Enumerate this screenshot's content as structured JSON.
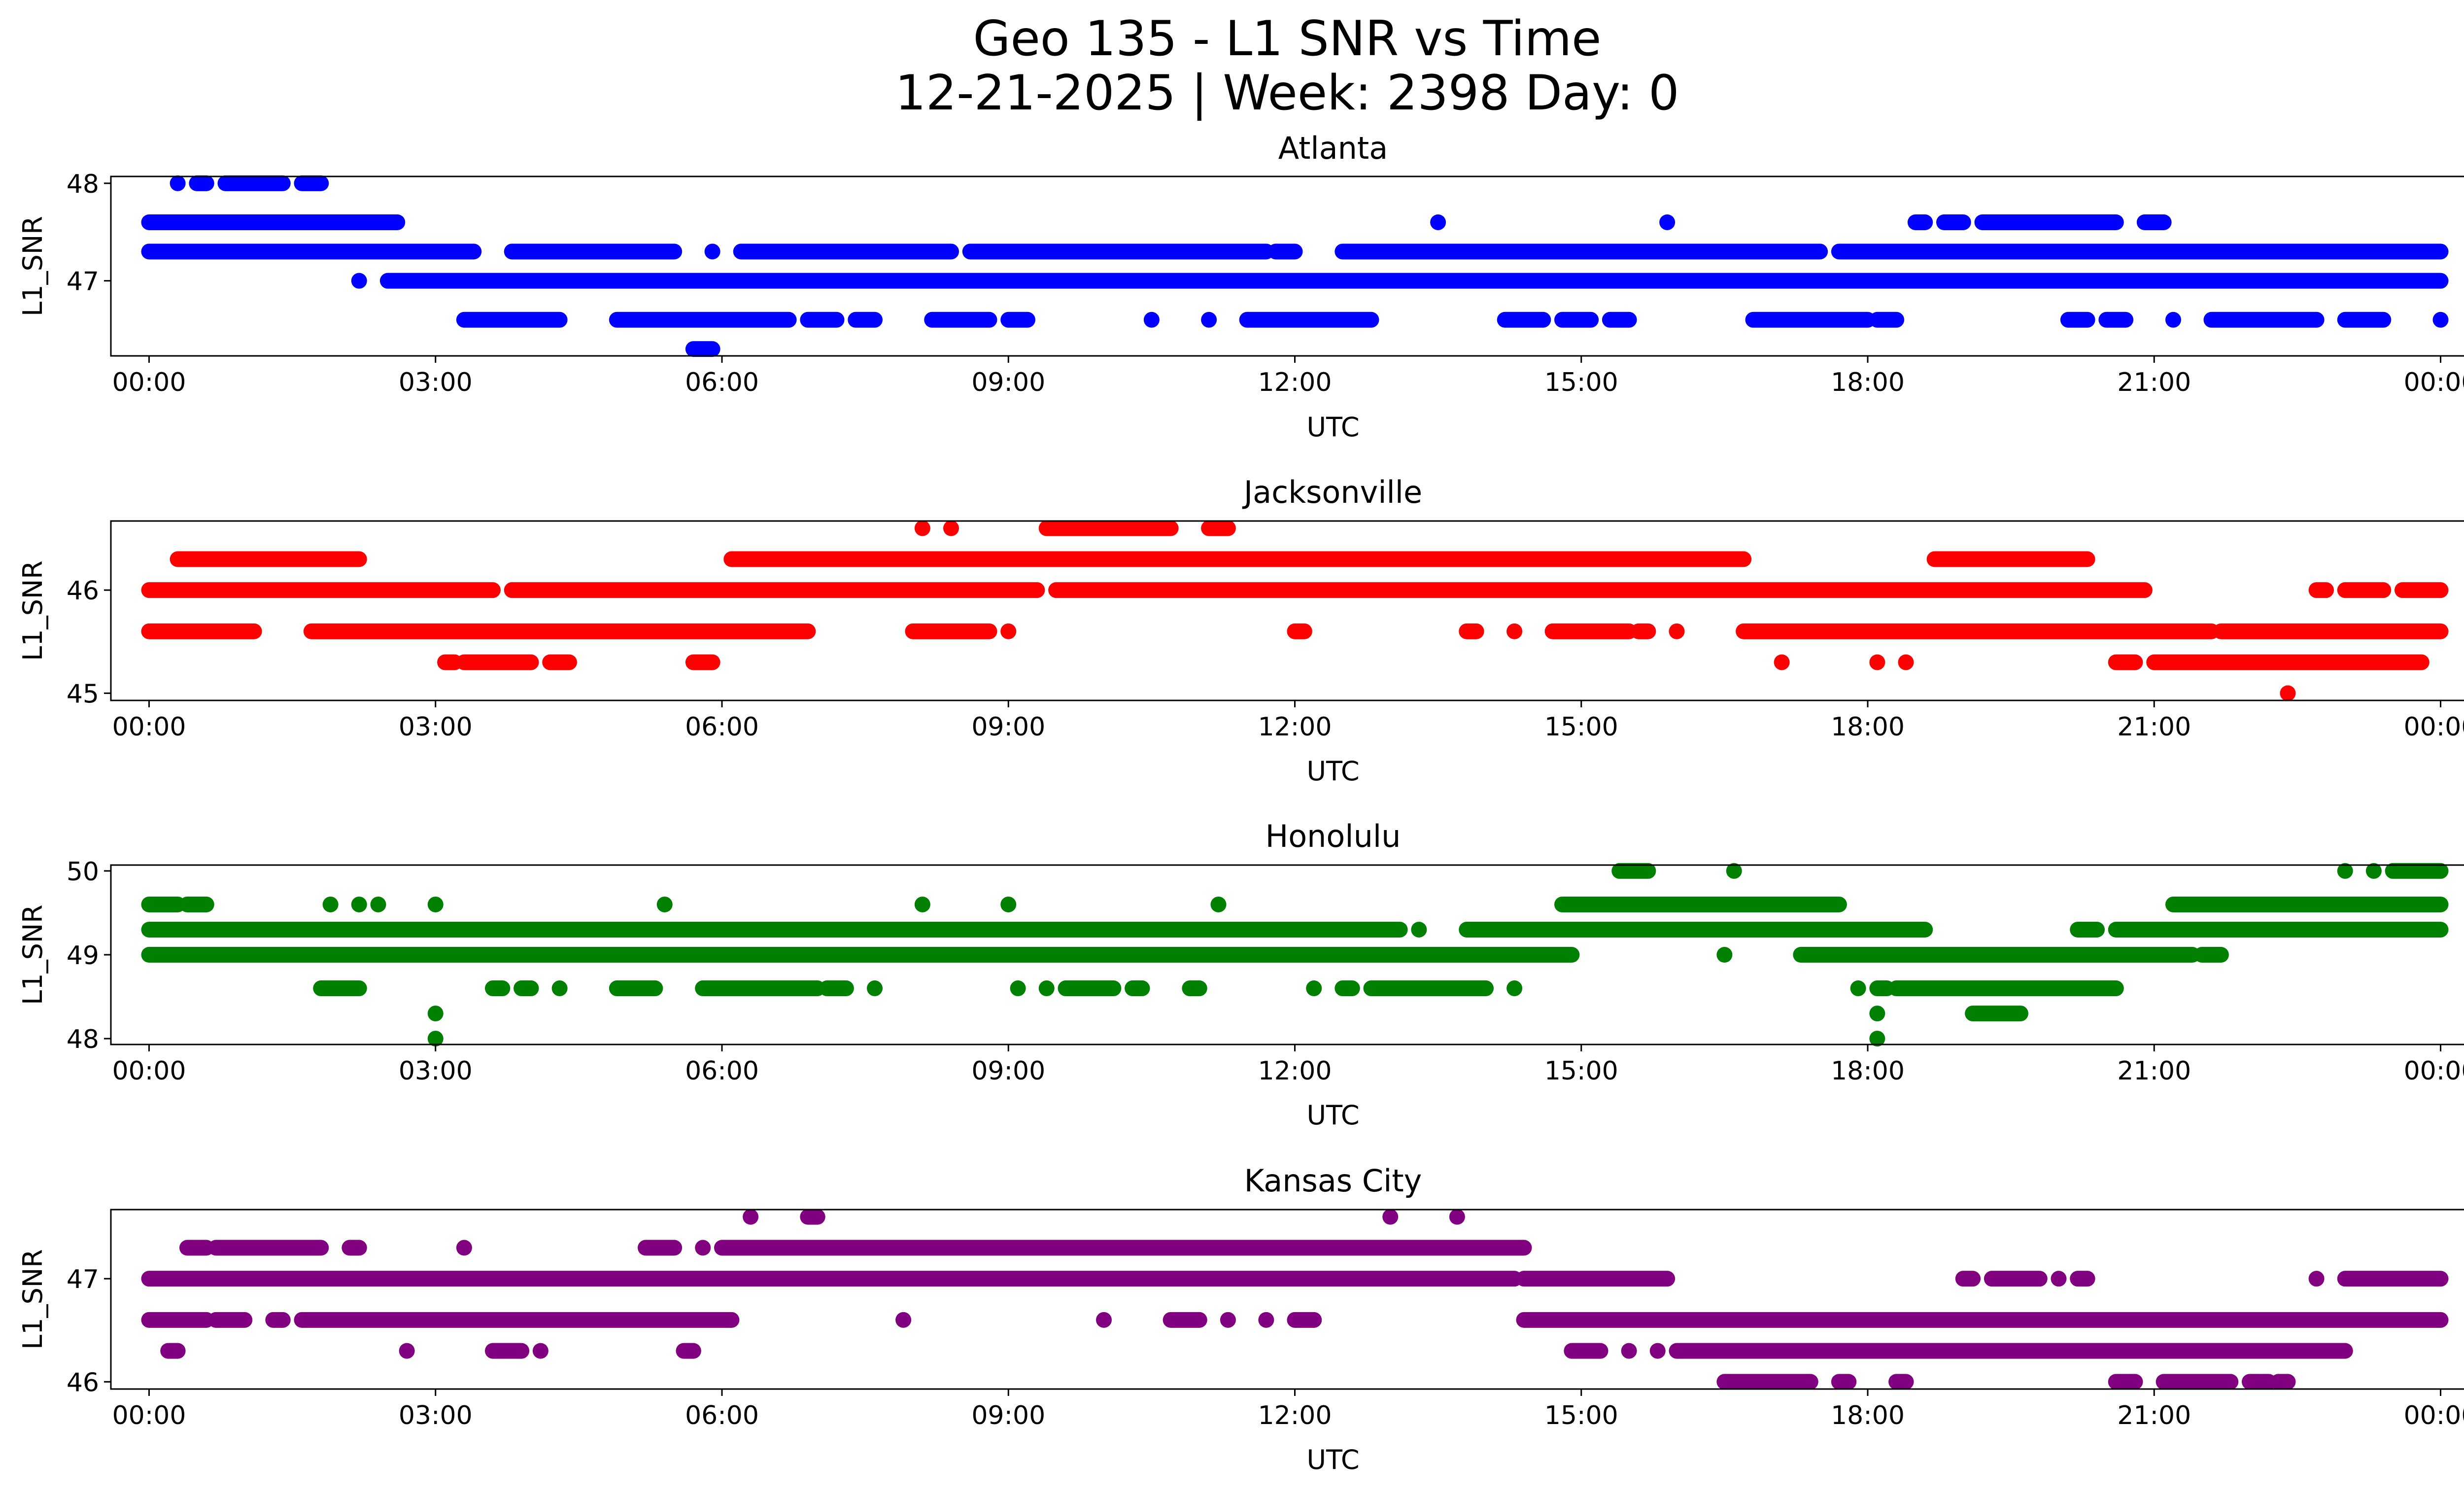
{
  "figure": {
    "title_line1": "Geo 135 - L1 SNR vs Time",
    "title_line2": "12-21-2025 | Week: 2398 Day: 0"
  },
  "chart_data": [
    {
      "type": "scatter",
      "title": "Atlanta",
      "xlabel": "UTC",
      "ylabel": "L1_SNR",
      "color": "#0000ff",
      "xlim": [
        -0.4,
        25.2
      ],
      "ylim": [
        46.23,
        48.07
      ],
      "xticks": [
        "00:00",
        "03:00",
        "06:00",
        "09:00",
        "12:00",
        "15:00",
        "18:00",
        "21:00",
        "00:00"
      ],
      "yticks": [
        47,
        48
      ],
      "bands": [
        {
          "y": 47.6,
          "segments": [
            [
              0,
              2.6
            ],
            [
              13.5,
              13.5
            ],
            [
              15.9,
              15.9
            ],
            [
              18.5,
              18.6
            ],
            [
              18.8,
              19.0
            ],
            [
              19.2,
              20.6
            ],
            [
              20.9,
              21.1
            ]
          ]
        },
        {
          "y": 47.3,
          "segments": [
            [
              0,
              3.4
            ],
            [
              3.8,
              5.5
            ],
            [
              5.9,
              5.9
            ],
            [
              6.2,
              8.4
            ],
            [
              8.6,
              11.7
            ],
            [
              11.8,
              12.0
            ],
            [
              12.5,
              17.5
            ],
            [
              17.7,
              24.0
            ]
          ]
        },
        {
          "y": 47.0,
          "segments": [
            [
              2.2,
              2.2
            ],
            [
              2.5,
              24.0
            ]
          ]
        },
        {
          "y": 46.6,
          "segments": [
            [
              3.3,
              4.3
            ],
            [
              4.9,
              6.7
            ],
            [
              6.9,
              7.2
            ],
            [
              7.4,
              7.6
            ],
            [
              8.2,
              8.8
            ],
            [
              9.0,
              9.2
            ],
            [
              10.5,
              10.5
            ],
            [
              11.1,
              11.1
            ],
            [
              11.5,
              12.8
            ],
            [
              14.2,
              14.6
            ],
            [
              14.8,
              15.1
            ],
            [
              15.3,
              15.5
            ],
            [
              16.8,
              18.0
            ],
            [
              18.1,
              18.3
            ],
            [
              20.1,
              20.3
            ],
            [
              20.5,
              20.7
            ],
            [
              21.2,
              21.2
            ],
            [
              21.6,
              22.7
            ],
            [
              23.0,
              23.4
            ],
            [
              24.0,
              24.0
            ]
          ]
        },
        {
          "y": 46.3,
          "segments": [
            [
              5.7,
              5.9
            ]
          ]
        },
        {
          "y": 48.0,
          "segments": [
            [
              0.3,
              0.3
            ],
            [
              0.5,
              0.6
            ],
            [
              0.8,
              1.4
            ],
            [
              1.6,
              1.8
            ]
          ]
        }
      ]
    },
    {
      "type": "scatter",
      "title": "Jacksonville",
      "xlabel": "UTC",
      "ylabel": "L1_SNR",
      "color": "#ff0000",
      "xlim": [
        -0.4,
        25.2
      ],
      "ylim": [
        44.93,
        46.67
      ],
      "xticks": [
        "00:00",
        "03:00",
        "06:00",
        "09:00",
        "12:00",
        "15:00",
        "18:00",
        "21:00",
        "00:00"
      ],
      "yticks": [
        45,
        46
      ],
      "bands": [
        {
          "y": 46.6,
          "segments": [
            [
              8.1,
              8.1
            ],
            [
              8.4,
              8.4
            ],
            [
              9.4,
              10.7
            ],
            [
              11.1,
              11.3
            ]
          ]
        },
        {
          "y": 46.3,
          "segments": [
            [
              0.3,
              2.2
            ],
            [
              6.1,
              16.7
            ],
            [
              18.7,
              20.3
            ]
          ]
        },
        {
          "y": 46.0,
          "segments": [
            [
              0,
              3.6
            ],
            [
              3.8,
              9.3
            ],
            [
              9.5,
              20.9
            ],
            [
              22.7,
              22.8
            ],
            [
              23.0,
              23.4
            ],
            [
              23.6,
              24.0
            ]
          ]
        },
        {
          "y": 45.6,
          "segments": [
            [
              0,
              1.1
            ],
            [
              1.7,
              6.9
            ],
            [
              8.0,
              8.8
            ],
            [
              9.0,
              9.0
            ],
            [
              12.0,
              12.1
            ],
            [
              13.8,
              13.9
            ],
            [
              14.3,
              14.3
            ],
            [
              14.7,
              15.5
            ],
            [
              15.6,
              15.7
            ],
            [
              16.0,
              16.0
            ],
            [
              16.7,
              21.6
            ],
            [
              21.7,
              24.0
            ]
          ]
        },
        {
          "y": 45.3,
          "segments": [
            [
              3.1,
              3.2
            ],
            [
              3.3,
              4.0
            ],
            [
              4.2,
              4.4
            ],
            [
              5.7,
              5.9
            ],
            [
              17.1,
              17.1
            ],
            [
              18.1,
              18.1
            ],
            [
              18.4,
              18.4
            ],
            [
              20.6,
              20.8
            ],
            [
              21.0,
              23.8
            ]
          ]
        },
        {
          "y": 45.0,
          "segments": [
            [
              22.4,
              22.4
            ]
          ]
        }
      ]
    },
    {
      "type": "scatter",
      "title": "Honolulu",
      "xlabel": "UTC",
      "ylabel": "L1_SNR",
      "color": "#008000",
      "xlim": [
        -0.4,
        25.2
      ],
      "ylim": [
        47.93,
        50.07
      ],
      "xticks": [
        "00:00",
        "03:00",
        "06:00",
        "09:00",
        "12:00",
        "15:00",
        "18:00",
        "21:00",
        "00:00"
      ],
      "yticks": [
        48,
        49,
        50
      ],
      "bands": [
        {
          "y": 50.0,
          "segments": [
            [
              15.4,
              15.7
            ],
            [
              16.6,
              16.6
            ],
            [
              23.0,
              23.0
            ],
            [
              23.3,
              23.3
            ],
            [
              23.5,
              24.0
            ]
          ]
        },
        {
          "y": 49.6,
          "segments": [
            [
              0,
              0.3
            ],
            [
              0.4,
              0.6
            ],
            [
              1.9,
              1.9
            ],
            [
              2.2,
              2.2
            ],
            [
              2.4,
              2.4
            ],
            [
              3.0,
              3.0
            ],
            [
              5.4,
              5.4
            ],
            [
              8.1,
              8.1
            ],
            [
              9.0,
              9.0
            ],
            [
              11.2,
              11.2
            ],
            [
              14.8,
              17.7
            ],
            [
              21.2,
              24.0
            ]
          ]
        },
        {
          "y": 49.3,
          "segments": [
            [
              0,
              13.1
            ],
            [
              13.3,
              13.3
            ],
            [
              13.8,
              18.6
            ],
            [
              20.2,
              20.4
            ],
            [
              20.6,
              24.0
            ]
          ]
        },
        {
          "y": 49.0,
          "segments": [
            [
              0,
              14.9
            ],
            [
              16.5,
              16.5
            ],
            [
              17.3,
              21.4
            ],
            [
              21.5,
              21.7
            ]
          ]
        },
        {
          "y": 48.6,
          "segments": [
            [
              1.8,
              2.2
            ],
            [
              3.6,
              3.7
            ],
            [
              3.9,
              4.0
            ],
            [
              4.3,
              4.3
            ],
            [
              4.9,
              5.3
            ],
            [
              5.8,
              7.0
            ],
            [
              7.1,
              7.3
            ],
            [
              7.6,
              7.6
            ],
            [
              9.1,
              9.1
            ],
            [
              9.4,
              9.4
            ],
            [
              9.6,
              10.1
            ],
            [
              10.3,
              10.4
            ],
            [
              10.9,
              11.0
            ],
            [
              12.2,
              12.2
            ],
            [
              12.5,
              12.6
            ],
            [
              12.8,
              14.0
            ],
            [
              14.3,
              14.3
            ],
            [
              17.9,
              17.9
            ],
            [
              18.1,
              18.2
            ],
            [
              18.3,
              20.6
            ]
          ]
        },
        {
          "y": 48.3,
          "segments": [
            [
              3.0,
              3.0
            ],
            [
              18.1,
              18.1
            ],
            [
              19.1,
              19.6
            ]
          ]
        },
        {
          "y": 48.0,
          "segments": [
            [
              3.0,
              3.0
            ],
            [
              18.1,
              18.1
            ]
          ]
        }
      ]
    },
    {
      "type": "scatter",
      "title": "Kansas City",
      "xlabel": "UTC",
      "ylabel": "L1_SNR",
      "color": "#800080",
      "xlim": [
        -0.4,
        25.2
      ],
      "ylim": [
        45.93,
        47.67
      ],
      "xticks": [
        "00:00",
        "03:00",
        "06:00",
        "09:00",
        "12:00",
        "15:00",
        "18:00",
        "21:00",
        "00:00"
      ],
      "yticks": [
        46,
        47
      ],
      "bands": [
        {
          "y": 47.6,
          "segments": [
            [
              6.3,
              6.3
            ],
            [
              6.9,
              7.0
            ],
            [
              13.0,
              13.0
            ],
            [
              13.7,
              13.7
            ]
          ]
        },
        {
          "y": 47.3,
          "segments": [
            [
              0.4,
              0.6
            ],
            [
              0.7,
              1.8
            ],
            [
              2.1,
              2.2
            ],
            [
              3.3,
              3.3
            ],
            [
              5.2,
              5.5
            ],
            [
              5.8,
              5.8
            ],
            [
              6.0,
              14.4
            ]
          ]
        },
        {
          "y": 47.0,
          "segments": [
            [
              0,
              14.3
            ],
            [
              14.4,
              15.9
            ],
            [
              19.0,
              19.1
            ],
            [
              19.3,
              19.8
            ],
            [
              20.0,
              20.0
            ],
            [
              20.2,
              20.3
            ],
            [
              22.7,
              22.7
            ],
            [
              23.0,
              24.0
            ]
          ]
        },
        {
          "y": 46.6,
          "segments": [
            [
              0,
              0.6
            ],
            [
              0.7,
              1.0
            ],
            [
              1.3,
              1.4
            ],
            [
              1.6,
              6.1
            ],
            [
              7.9,
              7.9
            ],
            [
              10.0,
              10.0
            ],
            [
              10.7,
              11.0
            ],
            [
              11.3,
              11.3
            ],
            [
              11.7,
              11.7
            ],
            [
              12.0,
              12.2
            ],
            [
              14.4,
              24.0
            ]
          ]
        },
        {
          "y": 46.3,
          "segments": [
            [
              0.2,
              0.3
            ],
            [
              2.7,
              2.7
            ],
            [
              3.6,
              3.9
            ],
            [
              4.1,
              4.1
            ],
            [
              5.6,
              5.7
            ],
            [
              14.9,
              15.2
            ],
            [
              15.5,
              15.5
            ],
            [
              15.8,
              15.8
            ],
            [
              16.0,
              23.0
            ]
          ]
        },
        {
          "y": 46.0,
          "segments": [
            [
              16.5,
              17.4
            ],
            [
              17.7,
              17.8
            ],
            [
              18.3,
              18.4
            ],
            [
              20.6,
              20.8
            ],
            [
              21.1,
              21.8
            ],
            [
              22.0,
              22.2
            ],
            [
              22.3,
              22.4
            ]
          ]
        }
      ]
    }
  ]
}
